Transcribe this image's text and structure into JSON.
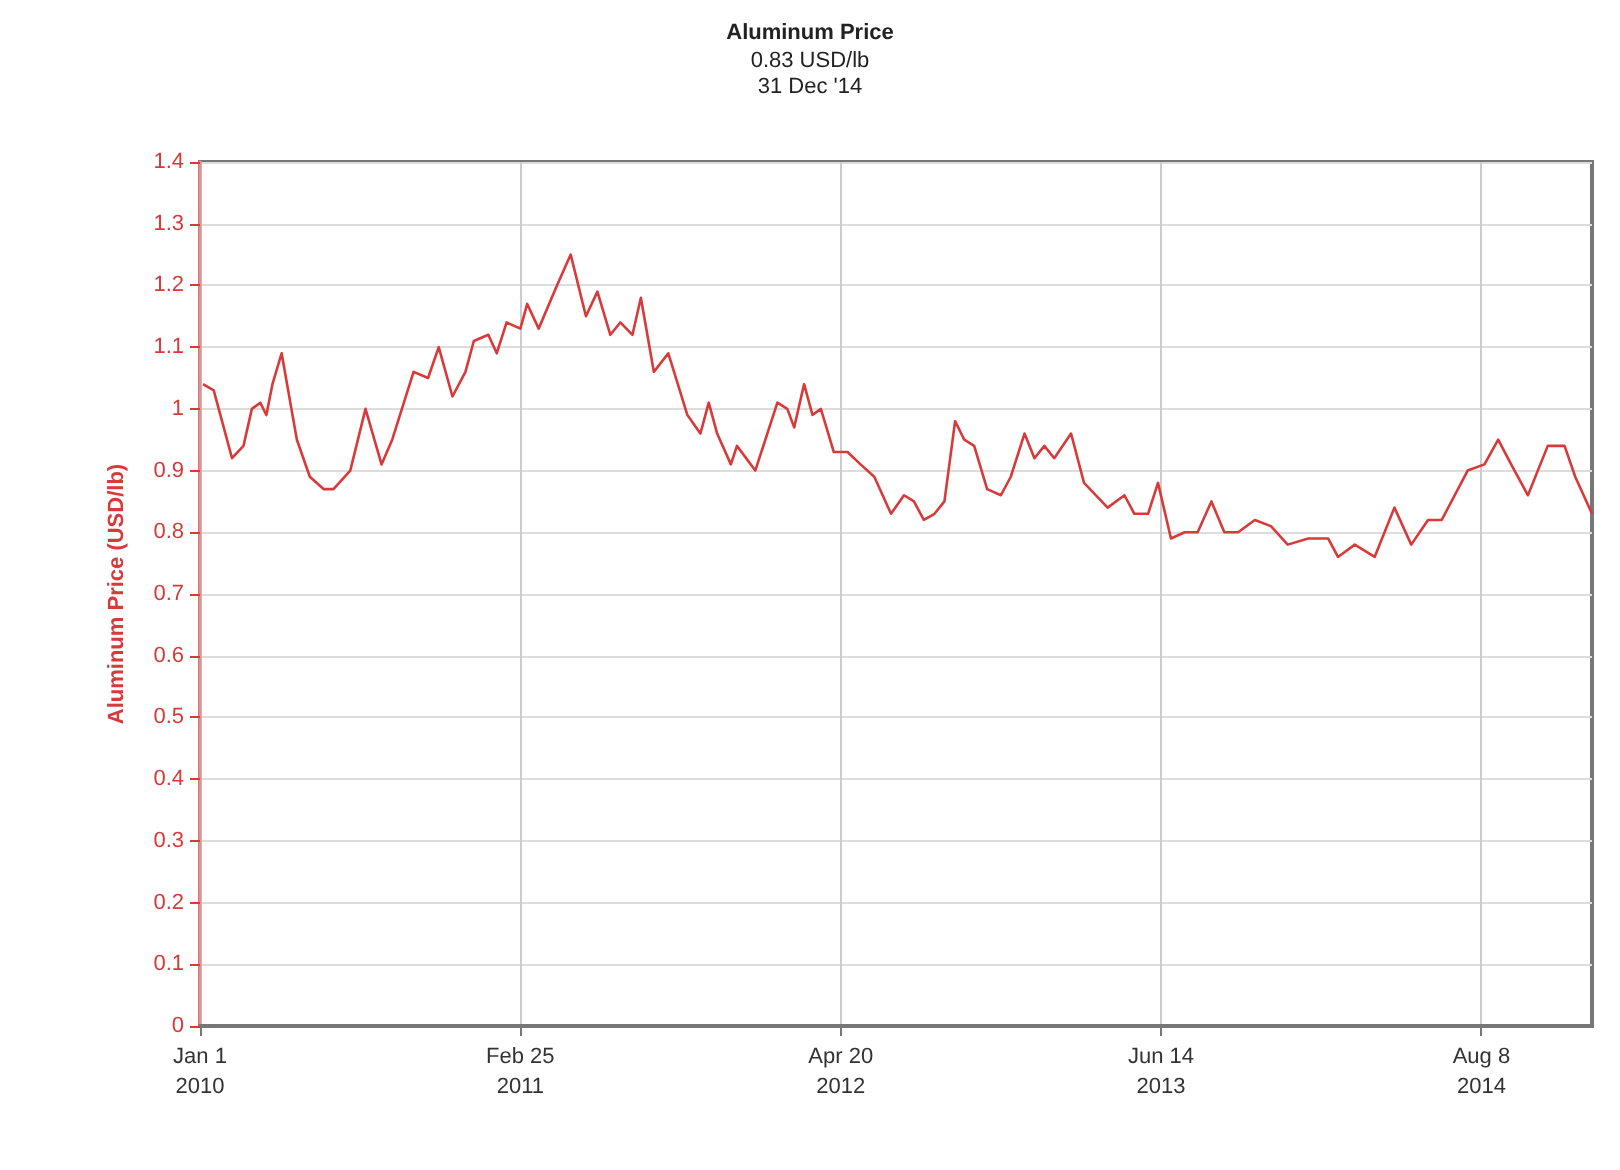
{
  "chart_data": {
    "type": "line",
    "title": "Aluminum Price",
    "subtitle": "0.83 USD/lb\n31 Dec '14",
    "ylabel": "Aluminum Price (USD/lb)",
    "x": [
      "2010-01-05",
      "2010-01-19",
      "2010-02-12",
      "2010-02-27",
      "2010-03-10",
      "2010-03-21",
      "2010-03-29",
      "2010-04-06",
      "2010-04-18",
      "2010-05-08",
      "2010-05-25",
      "2010-06-12",
      "2010-06-25",
      "2010-07-17",
      "2010-08-06",
      "2010-08-27",
      "2010-09-10",
      "2010-10-08",
      "2010-10-27",
      "2010-11-10",
      "2010-11-28",
      "2010-12-15",
      "2010-12-26",
      "2011-01-14",
      "2011-01-25",
      "2011-02-07",
      "2011-02-25",
      "2011-03-06",
      "2011-03-21",
      "2011-04-14",
      "2011-05-02",
      "2011-05-22",
      "2011-06-06",
      "2011-06-23",
      "2011-07-06",
      "2011-07-22",
      "2011-08-02",
      "2011-08-19",
      "2011-09-07",
      "2011-10-02",
      "2011-10-19",
      "2011-10-30",
      "2011-11-10",
      "2011-11-28",
      "2011-12-06",
      "2011-12-30",
      "2012-01-28",
      "2012-02-10",
      "2012-02-19",
      "2012-03-03",
      "2012-03-14",
      "2012-03-25",
      "2012-04-11",
      "2012-04-29",
      "2012-05-16",
      "2012-06-03",
      "2012-06-25",
      "2012-07-12",
      "2012-07-25",
      "2012-08-07",
      "2012-08-21",
      "2012-09-03",
      "2012-09-17",
      "2012-09-29",
      "2012-10-12",
      "2012-10-29",
      "2012-11-16",
      "2012-11-29",
      "2012-12-17",
      "2012-12-30",
      "2013-01-12",
      "2013-01-25",
      "2013-02-16",
      "2013-03-05",
      "2013-04-05",
      "2013-04-27",
      "2013-05-10",
      "2013-05-28",
      "2013-06-10",
      "2013-06-27",
      "2013-07-15",
      "2013-08-01",
      "2013-08-19",
      "2013-09-05",
      "2013-09-23",
      "2013-10-15",
      "2013-11-05",
      "2013-11-27",
      "2013-12-24",
      "2014-01-19",
      "2014-02-01",
      "2014-02-23",
      "2014-03-21",
      "2014-04-16",
      "2014-05-08",
      "2014-05-30",
      "2014-06-17",
      "2014-07-21",
      "2014-08-12",
      "2014-08-30",
      "2014-09-16",
      "2014-10-08",
      "2014-11-03",
      "2014-11-25",
      "2014-12-09",
      "2014-12-31"
    ],
    "series": [
      {
        "color": "#d83a3a",
        "values": [
          1.04,
          1.03,
          0.92,
          0.94,
          1.0,
          1.01,
          0.99,
          1.04,
          1.09,
          0.95,
          0.89,
          0.87,
          0.87,
          0.9,
          1.0,
          0.91,
          0.95,
          1.06,
          1.05,
          1.1,
          1.02,
          1.06,
          1.11,
          1.12,
          1.09,
          1.14,
          1.13,
          1.17,
          1.13,
          1.2,
          1.25,
          1.15,
          1.19,
          1.12,
          1.14,
          1.12,
          1.18,
          1.06,
          1.09,
          0.99,
          0.96,
          1.01,
          0.96,
          0.91,
          0.94,
          0.9,
          1.01,
          1.0,
          0.97,
          1.04,
          0.99,
          1.0,
          0.93,
          0.93,
          0.91,
          0.89,
          0.83,
          0.86,
          0.85,
          0.82,
          0.83,
          0.85,
          0.98,
          0.95,
          0.94,
          0.87,
          0.86,
          0.89,
          0.96,
          0.92,
          0.94,
          0.92,
          0.96,
          0.88,
          0.84,
          0.86,
          0.83,
          0.83,
          0.88,
          0.79,
          0.8,
          0.8,
          0.85,
          0.8,
          0.8,
          0.82,
          0.81,
          0.78,
          0.79,
          0.79,
          0.76,
          0.78,
          0.76,
          0.84,
          0.78,
          0.82,
          0.82,
          0.9,
          0.91,
          0.95,
          0.91,
          0.86,
          0.94,
          0.94,
          0.89,
          0.83
        ]
      }
    ],
    "xlim": [
      "2010-01-01",
      "2014-12-31"
    ],
    "xticks": [
      {
        "value": "2010-01-01",
        "label": "Jan 1\n2010"
      },
      {
        "value": "2011-02-25",
        "label": "Feb 25\n2011"
      },
      {
        "value": "2012-04-20",
        "label": "Apr 20\n2012"
      },
      {
        "value": "2013-06-14",
        "label": "Jun 14\n2013"
      },
      {
        "value": "2014-08-08",
        "label": "Aug 8\n2014"
      }
    ],
    "ylim": [
      0,
      1.4
    ],
    "yticks": [
      0,
      0.1,
      0.2,
      0.3,
      0.4,
      0.5,
      0.6,
      0.7,
      0.8,
      0.9,
      1,
      1.1,
      1.2,
      1.3,
      1.4
    ],
    "grid": true,
    "marker": "none",
    "line_style": "solid"
  }
}
